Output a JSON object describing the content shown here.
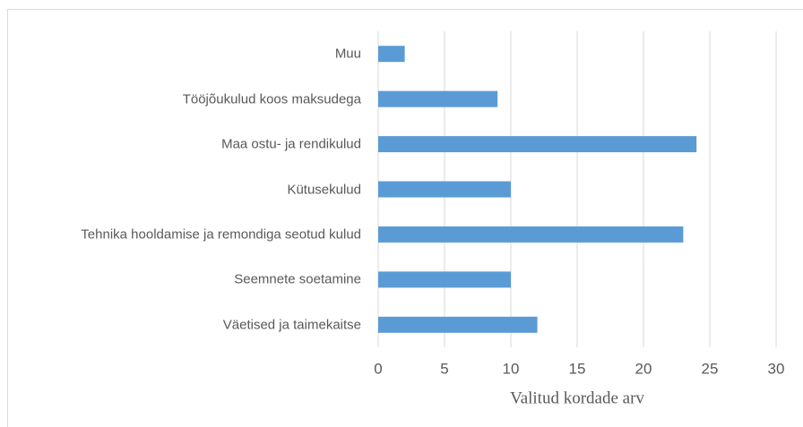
{
  "chart_data": {
    "type": "bar",
    "orientation": "horizontal",
    "categories": [
      "Muu",
      "Tööjõukulud koos maksudega",
      "Maa ostu- ja rendikulud",
      "Kütusekulud",
      "Tehnika hooldamise ja remondiga seotud kulud",
      "Seemnete soetamine",
      "Väetised ja taimekaitse"
    ],
    "values": [
      2,
      9,
      24,
      10,
      23,
      10,
      12
    ],
    "color": "#5b9bd5",
    "xlabel": "Valitud kordade arv",
    "xlim": [
      0,
      30
    ],
    "xticks": [
      0,
      5,
      10,
      15,
      20,
      25,
      30
    ],
    "grid": true
  }
}
